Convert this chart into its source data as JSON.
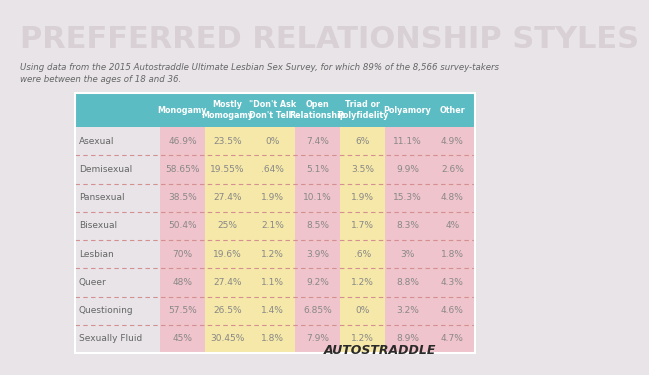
{
  "title": "PREFFERRED RELATIONSHIP STYLES",
  "subtitle": "Using data from the 2015 Autostraddle Ultimate Lesbian Sex Survey, for which 89% of the 8,566 survey-takers\nwere between the ages of 18 and 36.",
  "columns": [
    "Monogamy",
    "Mostly\nMomogamy",
    "\"Don't Ask\nDon't Tell\"",
    "Open\nRelationship",
    "Triad or\nPolyfidelity",
    "Polyamory",
    "Other"
  ],
  "rows": [
    "Asexual",
    "Demisexual",
    "Pansexual",
    "Bisexual",
    "Lesbian",
    "Queer",
    "Questioning",
    "Sexually Fluid"
  ],
  "data": [
    [
      "46.9%",
      "23.5%",
      "0%",
      "7.4%",
      "6%",
      "11.1%",
      "4.9%"
    ],
    [
      "58.65%",
      "19.55%",
      ".64%",
      "5.1%",
      "3.5%",
      "9.9%",
      "2.6%"
    ],
    [
      "38.5%",
      "27.4%",
      "1.9%",
      "10.1%",
      "1.9%",
      "15.3%",
      "4.8%"
    ],
    [
      "50.4%",
      "25%",
      "2.1%",
      "8.5%",
      "1.7%",
      "8.3%",
      "4%"
    ],
    [
      "70%",
      "19.6%",
      "1.2%",
      "3.9%",
      ".6%",
      "3%",
      "1.8%"
    ],
    [
      "48%",
      "27.4%",
      "1.1%",
      "9.2%",
      "1.2%",
      "8.8%",
      "4.3%"
    ],
    [
      "57.5%",
      "26.5%",
      "1.4%",
      "6.85%",
      "0%",
      "3.2%",
      "4.6%"
    ],
    [
      "45%",
      "30.45%",
      "1.8%",
      "7.9%",
      "1.2%",
      "8.9%",
      "4.7%"
    ]
  ],
  "bg_color": "#e8e4e8",
  "header_bg": "#5bbcc4",
  "col_colors": [
    "#f0c4cc",
    "#f5e8a8",
    "#f5e8a8",
    "#f0c4cc",
    "#f5e8a8",
    "#f0c4cc",
    "#f0c4cc"
  ],
  "row_label_bg": "#e8e4e8",
  "title_color": "#d8d0d4",
  "subtitle_color": "#666666",
  "header_text_color": "#ffffff",
  "row_label_color": "#666666",
  "cell_text_color": "#888888",
  "dashed_line_color": "#d49090",
  "autostraddle_color": "#2a2a2a"
}
